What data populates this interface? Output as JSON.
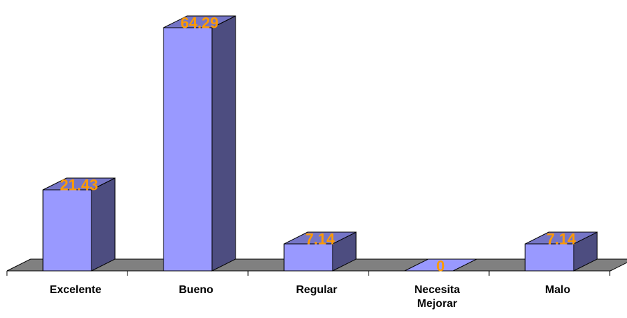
{
  "chart_data": {
    "type": "bar",
    "style": "3d-column",
    "categories": [
      "Excelente",
      "Bueno",
      "Regular",
      "Necesita Mejorar",
      "Malo"
    ],
    "values": [
      21.43,
      64.29,
      7.14,
      0,
      7.14
    ],
    "data_labels": [
      "21.43",
      "64.29",
      "7.14",
      "0",
      "7.14"
    ],
    "title": "",
    "xlabel": "",
    "ylabel": "",
    "ylim": [
      0,
      70
    ],
    "grid": false,
    "legend": "none",
    "colors": {
      "bar_front": "#9999ff",
      "bar_side": "#4d4d80",
      "bar_top": "#7575c6",
      "floor": "#808080",
      "data_label": "#ff9a00",
      "axis": "#000000"
    }
  }
}
